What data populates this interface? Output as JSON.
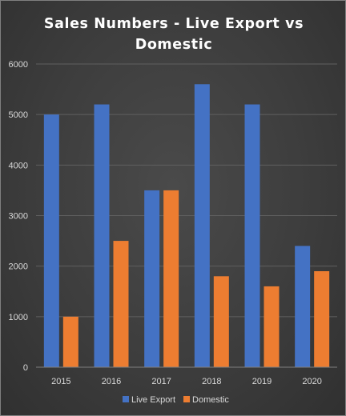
{
  "chart_data": {
    "type": "bar",
    "title": "Sales Numbers - Live Export vs Domestic",
    "xlabel": "",
    "ylabel": "",
    "categories": [
      "2015",
      "2016",
      "2017",
      "2018",
      "2019",
      "2020"
    ],
    "series": [
      {
        "name": "Live Export",
        "color": "#4472c4",
        "values": [
          5000,
          5200,
          3500,
          5600,
          5200,
          2400
        ]
      },
      {
        "name": "Domestic",
        "color": "#ed7d31",
        "values": [
          1000,
          2500,
          3500,
          1800,
          1600,
          1900
        ]
      }
    ],
    "ylim": [
      0,
      6000
    ],
    "yticks": [
      "0",
      "1000",
      "2000",
      "3000",
      "4000",
      "5000",
      "6000"
    ],
    "grid": true,
    "legend_position": "bottom"
  }
}
